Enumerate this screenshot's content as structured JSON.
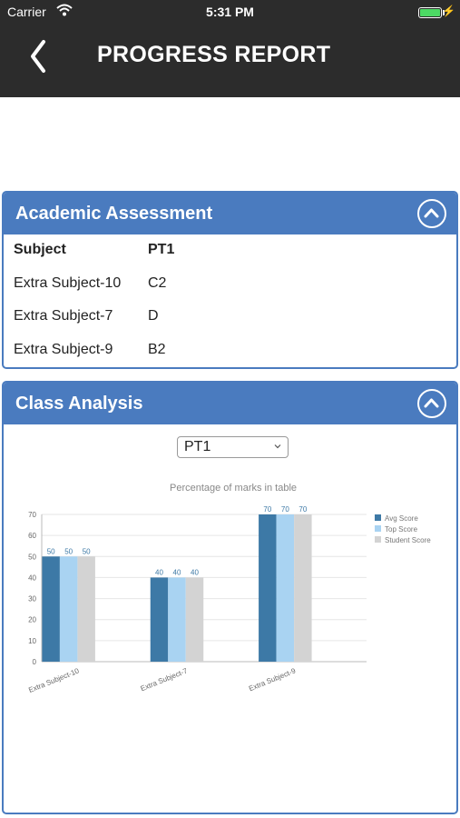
{
  "status_bar": {
    "carrier": "Carrier",
    "time": "5:31 PM"
  },
  "nav": {
    "title": "PROGRESS REPORT"
  },
  "academic": {
    "title": "Academic Assessment",
    "headers": [
      "Subject",
      "PT1"
    ],
    "rows": [
      [
        "Extra Subject-10",
        "C2"
      ],
      [
        "Extra Subject-7",
        "D"
      ],
      [
        "Extra Subject-9",
        "B2"
      ]
    ]
  },
  "analysis": {
    "title": "Class Analysis",
    "select_value": "PT1"
  },
  "colors": {
    "accent": "#4a7bbf",
    "avg": "#3d79a6",
    "top": "#a9d3f2",
    "student": "#d3d3d3"
  },
  "chart_data": {
    "type": "bar",
    "title": "Percentage of marks in table",
    "categories": [
      "Extra Subject-10",
      "Extra Subject-7",
      "Extra Subject-9"
    ],
    "series": [
      {
        "name": "Avg Score",
        "values": [
          50,
          40,
          70
        ]
      },
      {
        "name": "Top Score",
        "values": [
          50,
          40,
          70
        ]
      },
      {
        "name": "Student Score",
        "values": [
          50,
          40,
          70
        ]
      }
    ],
    "ylim": [
      0,
      70
    ],
    "yticks": [
      0,
      10,
      20,
      30,
      40,
      50,
      60,
      70
    ],
    "grid": true,
    "legend": "top-right"
  }
}
